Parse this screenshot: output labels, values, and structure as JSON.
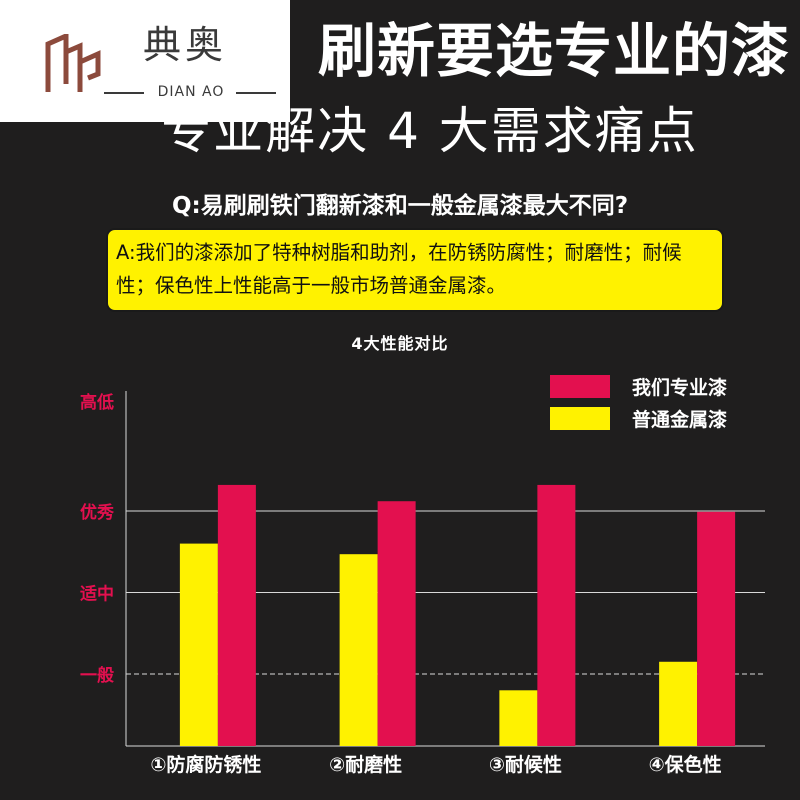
{
  "brand": {
    "name_cn": "典奥",
    "name_en": "DIAN AO",
    "logo_color": "#8c4a3c"
  },
  "header": {
    "headline": "刷新要选专业的漆",
    "subheadline": "专业解决 4 大需求痛点"
  },
  "qa": {
    "question": "Q:易刷刷铁门翻新漆和一般金属漆最大不同?",
    "answer": "A:我们的漆添加了特种树脂和助剂，在防锈防腐性；耐磨性；耐候性；保色性上性能高于一般市场普通金属漆。"
  },
  "chart_data": {
    "type": "bar",
    "title": "4大性能对比",
    "categories": [
      "①防腐防锈性",
      "②耐磨性",
      "③耐候性",
      "④保色性"
    ],
    "y_levels": [
      {
        "label": "一般",
        "value": 1,
        "line": "dashed"
      },
      {
        "label": "适中",
        "value": 2,
        "line": "solid"
      },
      {
        "label": "优秀",
        "value": 3,
        "line": "solid"
      },
      {
        "label": "高低",
        "value": 4.35,
        "line": "none"
      }
    ],
    "ylim": [
      -0.7,
      4.35
    ],
    "series": [
      {
        "name": "普通金属漆",
        "color": "#fff200",
        "values": [
          2.6,
          2.47,
          0.8,
          1.15
        ]
      },
      {
        "name": "我们专业漆",
        "color": "#e3104f",
        "values": [
          3.32,
          3.12,
          3.32,
          2.99
        ]
      }
    ],
    "legend_position": "top-right",
    "grid": true
  }
}
